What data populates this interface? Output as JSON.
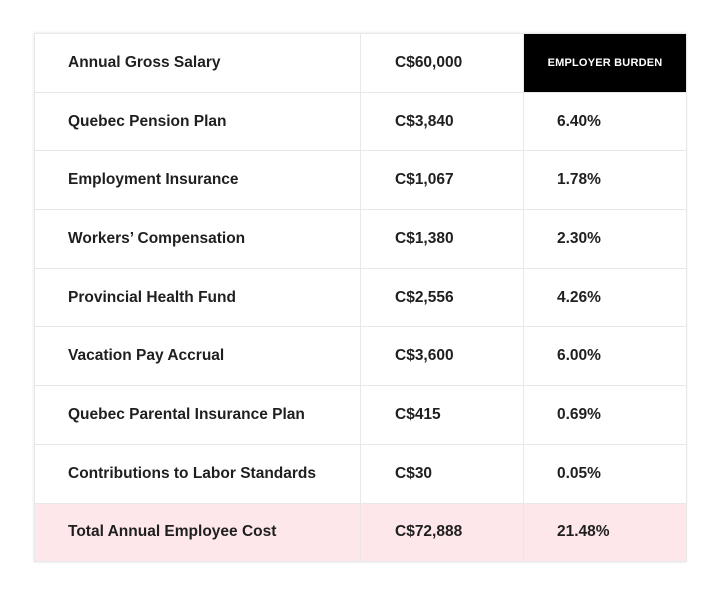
{
  "table": {
    "rows": [
      [
        "Annual Gross Salary",
        "C$60,000",
        "EMPLOYER BURDEN"
      ],
      [
        "Quebec Pension Plan",
        "C$3,840",
        "6.40%"
      ],
      [
        "Employment Insurance",
        "C$1,067",
        "1.78%"
      ],
      [
        "Workers’ Compensation",
        "C$1,380",
        "2.30%"
      ],
      [
        "Provincial Health Fund",
        "C$2,556",
        "4.26%"
      ],
      [
        "Vacation Pay Accrual",
        "C$3,600",
        "6.00%"
      ],
      [
        "Quebec Parental Insurance Plan",
        "C$415",
        "0.69%"
      ],
      [
        "Contributions to Labor Standards",
        "C$30",
        "0.05%"
      ],
      [
        "Total Annual Employee Cost",
        "C$72,888",
        "21.48%"
      ]
    ]
  }
}
